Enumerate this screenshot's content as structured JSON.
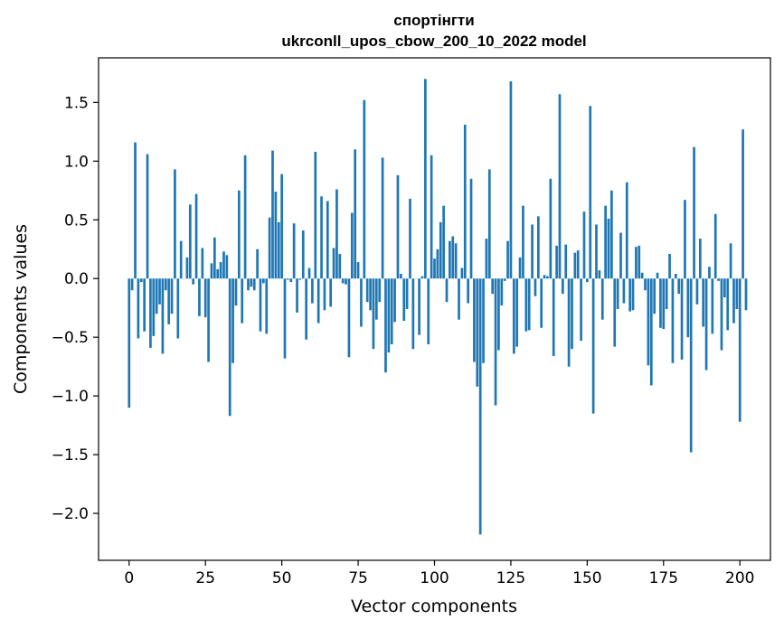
{
  "chart_data": {
    "type": "bar",
    "title": "спортінгти",
    "subtitle": "ukrconll_upos_cbow_200_10_2022 model",
    "xlabel": "Vector components",
    "ylabel": "Components values",
    "xlim": [
      -10,
      210
    ],
    "ylim": [
      -2.4,
      1.88
    ],
    "x_ticks": [
      0,
      25,
      50,
      75,
      100,
      125,
      150,
      175,
      200
    ],
    "x_tick_labels": [
      "0",
      "25",
      "50",
      "75",
      "100",
      "125",
      "150",
      "175",
      "200"
    ],
    "y_ticks": [
      1.5,
      1.0,
      0.5,
      0.0,
      -0.5,
      -1.0,
      -1.5,
      -2.0
    ],
    "y_tick_labels": [
      "1.5",
      "1.0",
      "0.5",
      "0.0",
      "−0.5",
      "−1.0",
      "−1.5",
      "−2.0"
    ],
    "bar_color": "#1f77b4",
    "grid": false,
    "values": [
      -1.1,
      -0.1,
      1.16,
      -0.51,
      -0.03,
      -0.45,
      1.06,
      -0.59,
      -0.49,
      -0.3,
      -0.22,
      -0.64,
      -0.1,
      -0.39,
      -0.3,
      0.93,
      -0.51,
      0.32,
      0.0,
      0.18,
      0.63,
      -0.05,
      0.72,
      -0.32,
      0.26,
      -0.33,
      -0.71,
      0.13,
      0.35,
      0.08,
      0.14,
      0.23,
      0.2,
      -1.17,
      -0.72,
      -0.23,
      0.75,
      -0.38,
      1.05,
      -0.1,
      -0.07,
      -0.1,
      0.25,
      -0.45,
      -0.04,
      -0.47,
      0.52,
      1.09,
      0.74,
      0.48,
      0.89,
      -0.68,
      -0.01,
      -0.03,
      0.47,
      -0.29,
      -0.01,
      0.41,
      -0.52,
      0.09,
      -0.21,
      1.08,
      -0.38,
      0.7,
      -0.27,
      0.66,
      -0.24,
      0.26,
      0.76,
      0.21,
      -0.04,
      -0.05,
      -0.67,
      0.56,
      1.1,
      0.14,
      -0.41,
      1.52,
      -0.2,
      -0.27,
      -0.6,
      -0.35,
      -0.2,
      1.03,
      -0.8,
      -0.63,
      -0.56,
      -0.37,
      0.88,
      0.04,
      -0.36,
      -0.26,
      0.68,
      -0.6,
      0.0,
      -0.48,
      0.02,
      1.7,
      -0.56,
      1.05,
      0.17,
      0.25,
      0.48,
      0.62,
      -0.2,
      0.32,
      0.36,
      0.3,
      -0.35,
      0.09,
      1.31,
      -0.21,
      0.85,
      -0.71,
      -0.92,
      -2.18,
      -0.72,
      0.34,
      0.93,
      -0.13,
      -1.08,
      -0.61,
      -0.23,
      -0.02,
      0.32,
      1.68,
      -0.64,
      -0.58,
      0.18,
      0.62,
      -0.45,
      -0.44,
      0.46,
      -0.15,
      0.53,
      -0.42,
      0.03,
      0.02,
      0.85,
      -0.66,
      0.28,
      1.57,
      -0.13,
      0.29,
      -0.75,
      -0.6,
      0.22,
      0.24,
      -0.53,
      0.57,
      -0.03,
      1.47,
      -1.15,
      0.46,
      0.07,
      -0.35,
      0.62,
      0.51,
      0.75,
      -0.58,
      -0.26,
      0.39,
      -0.21,
      0.82,
      -0.28,
      -0.27,
      0.27,
      0.28,
      0.05,
      -0.1,
      -0.74,
      -0.91,
      -0.3,
      0.05,
      -0.42,
      -0.43,
      -0.26,
      0.21,
      -0.72,
      0.04,
      -0.13,
      -0.69,
      0.67,
      -0.5,
      -1.48,
      1.12,
      -0.22,
      0.34,
      -0.41,
      -0.78,
      0.1,
      -0.47,
      0.55,
      -0.02,
      -0.61,
      -0.16,
      -0.44,
      0.3,
      -0.38,
      -0.26,
      -1.22,
      1.27,
      -0.27
    ]
  }
}
